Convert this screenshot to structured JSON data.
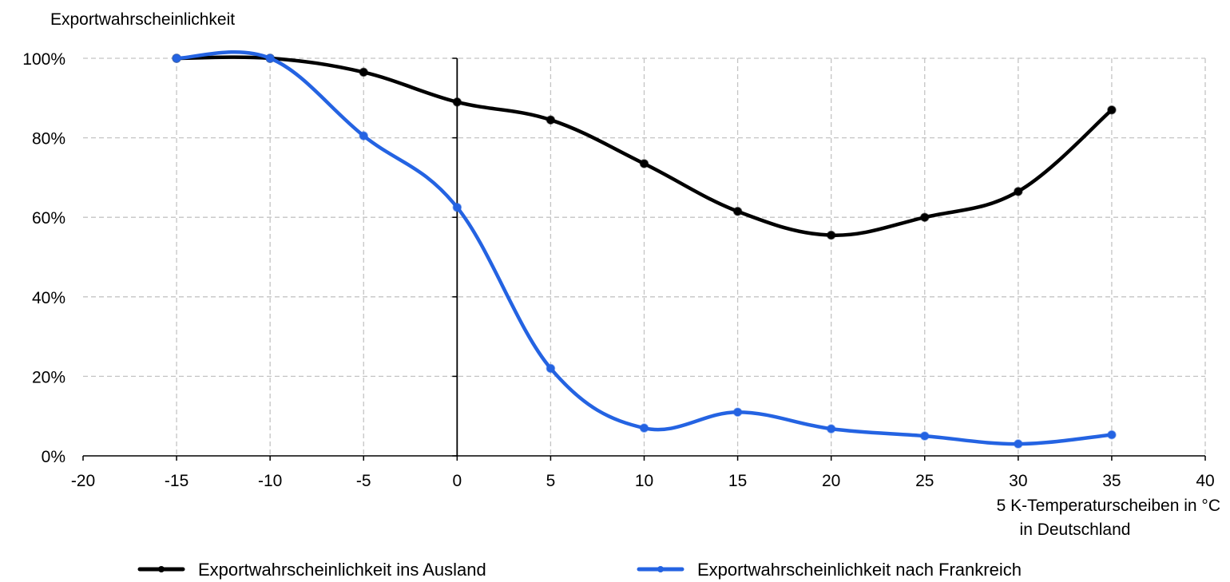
{
  "chart_data": {
    "type": "line",
    "ylabel": "Exportwahrscheinlichkeit",
    "xlabel_line1": "5 K-Temperaturscheiben in °C",
    "xlabel_line2": "in Deutschland",
    "xlim": [
      -20,
      40
    ],
    "ylim": [
      0,
      100
    ],
    "x_ticks": [
      "-20",
      "-15",
      "-10",
      "-5",
      "0",
      "5",
      "10",
      "15",
      "20",
      "25",
      "30",
      "35",
      "40"
    ],
    "x_tick_values": [
      -20,
      -15,
      -10,
      -5,
      0,
      5,
      10,
      15,
      20,
      25,
      30,
      35,
      40
    ],
    "negative_tick_color": "#ff0000",
    "y_ticks": [
      "0%",
      "20%",
      "40%",
      "60%",
      "80%",
      "100%"
    ],
    "y_tick_values": [
      0,
      20,
      40,
      60,
      80,
      100
    ],
    "grid": true,
    "legend_position": "bottom",
    "series": [
      {
        "name": "Exportwahrscheinlichkeit ins Ausland",
        "color": "#000000",
        "x": [
          -15,
          -10,
          -5,
          0,
          5,
          10,
          15,
          20,
          25,
          30,
          35
        ],
        "y": [
          100,
          100,
          96.5,
          89,
          84.5,
          73.5,
          61.5,
          55.5,
          60,
          66.5,
          87
        ]
      },
      {
        "name": "Exportwahrscheinlichkeit nach Frankreich",
        "color": "#2463e2",
        "x": [
          -15,
          -10,
          -5,
          0,
          5,
          10,
          15,
          20,
          25,
          30,
          35
        ],
        "y": [
          100,
          100,
          80.5,
          62.5,
          22,
          7,
          11,
          6.8,
          5,
          3,
          5.3
        ]
      }
    ]
  }
}
